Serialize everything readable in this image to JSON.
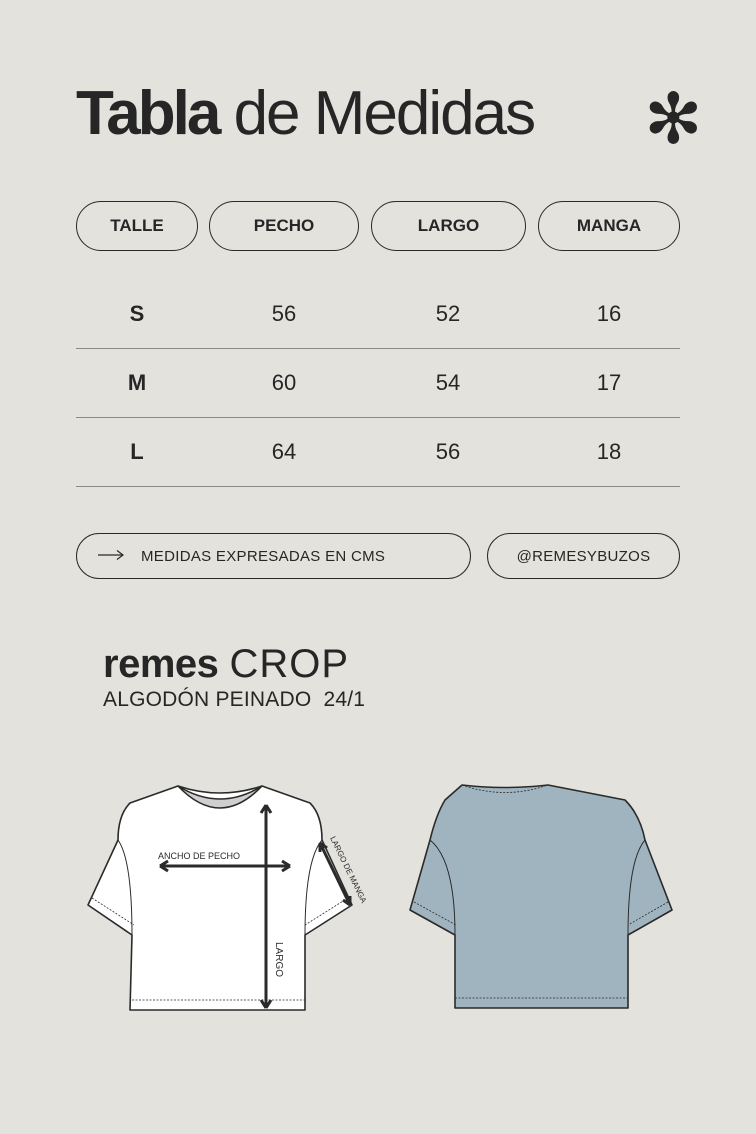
{
  "header": {
    "title_bold": "Tabla",
    "title_rest": "de Medidas",
    "decor_icon": "asterisk-icon"
  },
  "table": {
    "columns": [
      "TALLE",
      "PECHO",
      "LARGO",
      "MANGA"
    ],
    "rows": [
      [
        "S",
        "56",
        "52",
        "16"
      ],
      [
        "M",
        "60",
        "54",
        "17"
      ],
      [
        "L",
        "64",
        "56",
        "18"
      ]
    ]
  },
  "notes": {
    "arrow_icon": "arrow-right-icon",
    "units": "MEDIDAS EXPRESADAS EN CMS",
    "handle": "@REMESYBUZOS"
  },
  "product": {
    "brand_bold": "remes",
    "brand_light": "CROP",
    "fabric": "ALGODÓN PEINADO  24/1",
    "labels": {
      "chest": "ANCHO DE PECHO",
      "sleeve": "LARGO DE MANGA",
      "length": "LARGO"
    },
    "colors": {
      "front": "#ffffff",
      "back": "#9fb4be",
      "outline": "#2a2a2a"
    }
  }
}
